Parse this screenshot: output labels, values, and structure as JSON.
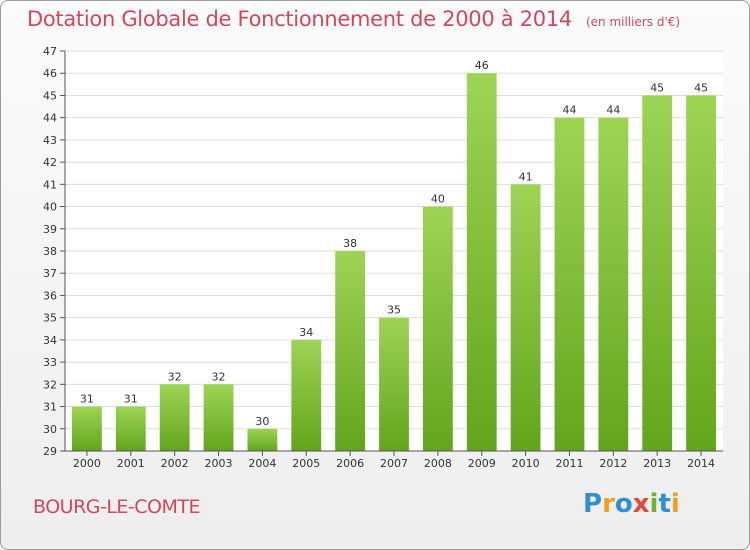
{
  "header": {
    "title": "Dotation Globale de Fonctionnement de 2000 à 2014",
    "unit": "(en milliers d'€)"
  },
  "footer": {
    "commune": "BOURG-LE-COMTE",
    "logo_text": "Proxiti",
    "logo_letters": [
      {
        "ch": "P",
        "color": "#2e8fd6"
      },
      {
        "ch": "r",
        "color": "#f0a020"
      },
      {
        "ch": "o",
        "color": "#2e8fd6"
      },
      {
        "ch": "x",
        "color": "#e8453c"
      },
      {
        "ch": "i",
        "color": "#6fb32c"
      },
      {
        "ch": "t",
        "color": "#2e8fd6"
      },
      {
        "ch": "i",
        "color": "#f0a020"
      }
    ]
  },
  "colors": {
    "title": "#d1485a",
    "bar_light": "#9ed454",
    "bar_dark": "#62a51c",
    "grid": "#dddddd",
    "axis": "#555555"
  },
  "chart_data": {
    "type": "bar",
    "categories": [
      "2000",
      "2001",
      "2002",
      "2003",
      "2004",
      "2005",
      "2006",
      "2007",
      "2008",
      "2009",
      "2010",
      "2011",
      "2012",
      "2013",
      "2014"
    ],
    "values": [
      31,
      31,
      32,
      32,
      30,
      34,
      38,
      35,
      40,
      46,
      41,
      44,
      44,
      45,
      45
    ],
    "title": "Dotation Globale de Fonctionnement de 2000 à 2014",
    "ylim": [
      29,
      47
    ],
    "yticks": [
      29,
      30,
      31,
      32,
      33,
      34,
      35,
      36,
      37,
      38,
      39,
      40,
      41,
      42,
      43,
      44,
      45,
      46,
      47
    ],
    "grid": true,
    "data_labels": true
  }
}
